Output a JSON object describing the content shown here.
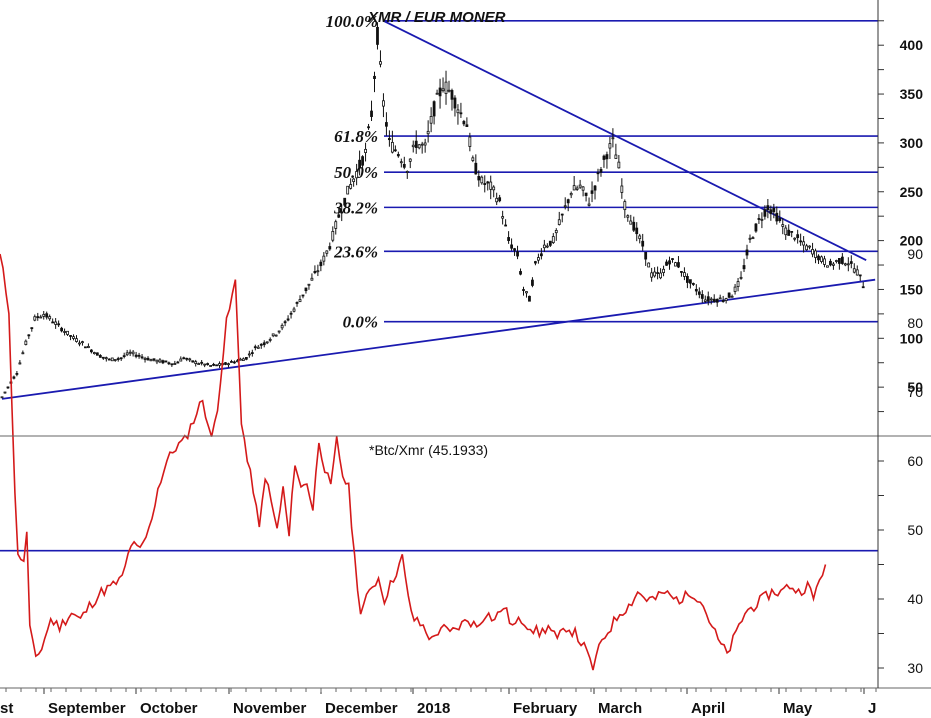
{
  "chart_data": [
    {
      "type": "candlestick",
      "title": "XMR / EUR MONER",
      "ylim": [
        0,
        440
      ],
      "yticks": [
        50,
        100,
        150,
        200,
        250,
        300,
        350,
        400
      ],
      "grid": false,
      "months": [
        "st",
        "September",
        "October",
        "November",
        "December",
        "2018",
        "February",
        "March",
        "April",
        "May",
        "J"
      ],
      "fib_levels": [
        {
          "label": "100.0%",
          "value": 425
        },
        {
          "label": "61.8%",
          "value": 307
        },
        {
          "label": "50.0%",
          "value": 270
        },
        {
          "label": "38.2%",
          "value": 234
        },
        {
          "label": "23.6%",
          "value": 189
        },
        {
          "label": "0.0%",
          "value": 117
        }
      ],
      "trendlines": [
        {
          "from": {
            "day": 0,
            "price": 38
          },
          "to": {
            "day": 293,
            "price": 160
          }
        },
        {
          "from": {
            "day": 128,
            "price": 425
          },
          "to": {
            "day": 290,
            "price": 180
          }
        }
      ],
      "close_points": [
        [
          0,
          40
        ],
        [
          5,
          65
        ],
        [
          8,
          95
        ],
        [
          11,
          120
        ],
        [
          14,
          125
        ],
        [
          17,
          118
        ],
        [
          20,
          110
        ],
        [
          24,
          100
        ],
        [
          27,
          95
        ],
        [
          30,
          88
        ],
        [
          33,
          82
        ],
        [
          36,
          78
        ],
        [
          40,
          80
        ],
        [
          43,
          85
        ],
        [
          46,
          82
        ],
        [
          50,
          78
        ],
        [
          54,
          76
        ],
        [
          58,
          74
        ],
        [
          61,
          80
        ],
        [
          64,
          76
        ],
        [
          67,
          74
        ],
        [
          70,
          72
        ],
        [
          74,
          73
        ],
        [
          78,
          76
        ],
        [
          82,
          80
        ],
        [
          85,
          90
        ],
        [
          88,
          95
        ],
        [
          92,
          105
        ],
        [
          95,
          115
        ],
        [
          98,
          130
        ],
        [
          101,
          145
        ],
        [
          104,
          160
        ],
        [
          107,
          175
        ],
        [
          110,
          195
        ],
        [
          113,
          225
        ],
        [
          116,
          250
        ],
        [
          119,
          270
        ],
        [
          122,
          290
        ],
        [
          124,
          330
        ],
        [
          126,
          410
        ],
        [
          128,
          340
        ],
        [
          130,
          300
        ],
        [
          133,
          290
        ],
        [
          136,
          275
        ],
        [
          139,
          300
        ],
        [
          142,
          295
        ],
        [
          145,
          335
        ],
        [
          148,
          360
        ],
        [
          151,
          350
        ],
        [
          154,
          330
        ],
        [
          156,
          320
        ],
        [
          158,
          280
        ],
        [
          161,
          260
        ],
        [
          164,
          255
        ],
        [
          167,
          240
        ],
        [
          170,
          200
        ],
        [
          173,
          185
        ],
        [
          175,
          150
        ],
        [
          177,
          140
        ],
        [
          179,
          175
        ],
        [
          182,
          195
        ],
        [
          185,
          200
        ],
        [
          188,
          225
        ],
        [
          191,
          250
        ],
        [
          194,
          255
        ],
        [
          197,
          240
        ],
        [
          200,
          265
        ],
        [
          203,
          290
        ],
        [
          205,
          300
        ],
        [
          207,
          275
        ],
        [
          209,
          235
        ],
        [
          212,
          215
        ],
        [
          215,
          195
        ],
        [
          218,
          165
        ],
        [
          221,
          165
        ],
        [
          224,
          180
        ],
        [
          227,
          175
        ],
        [
          230,
          160
        ],
        [
          233,
          150
        ],
        [
          236,
          140
        ],
        [
          239,
          140
        ],
        [
          242,
          140
        ],
        [
          245,
          145
        ],
        [
          248,
          160
        ],
        [
          251,
          200
        ],
        [
          254,
          220
        ],
        [
          257,
          235
        ],
        [
          260,
          225
        ],
        [
          263,
          210
        ],
        [
          266,
          205
        ],
        [
          269,
          195
        ],
        [
          272,
          190
        ],
        [
          275,
          180
        ],
        [
          278,
          175
        ],
        [
          281,
          180
        ],
        [
          284,
          178
        ],
        [
          287,
          168
        ],
        [
          289,
          155
        ]
      ]
    },
    {
      "type": "line",
      "title": "*Btc/Xmr (45.1933)",
      "ylim": [
        22,
        95
      ],
      "yticks": [
        30,
        40,
        50,
        60,
        70,
        80,
        90
      ],
      "grid": false,
      "hline": 47,
      "series_color": "#d41a1a",
      "hline_color": "#1a1ab0",
      "points": [
        [
          0,
          90
        ],
        [
          3,
          82
        ],
        [
          5,
          55
        ],
        [
          6,
          47
        ],
        [
          8,
          45
        ],
        [
          9,
          50
        ],
        [
          10,
          36
        ],
        [
          12,
          31
        ],
        [
          14,
          33
        ],
        [
          17,
          37
        ],
        [
          20,
          36
        ],
        [
          24,
          38
        ],
        [
          27,
          37
        ],
        [
          30,
          39
        ],
        [
          34,
          41
        ],
        [
          38,
          42
        ],
        [
          41,
          43
        ],
        [
          44,
          48
        ],
        [
          47,
          47
        ],
        [
          50,
          50
        ],
        [
          53,
          56
        ],
        [
          56,
          60
        ],
        [
          59,
          62
        ],
        [
          62,
          63
        ],
        [
          65,
          66
        ],
        [
          68,
          69
        ],
        [
          71,
          63
        ],
        [
          73,
          68
        ],
        [
          76,
          80
        ],
        [
          79,
          86
        ],
        [
          81,
          66
        ],
        [
          83,
          60
        ],
        [
          85,
          56
        ],
        [
          87,
          50
        ],
        [
          89,
          58
        ],
        [
          91,
          54
        ],
        [
          93,
          50
        ],
        [
          95,
          56
        ],
        [
          97,
          49
        ],
        [
          99,
          60
        ],
        [
          101,
          56
        ],
        [
          103,
          57
        ],
        [
          105,
          53
        ],
        [
          107,
          63
        ],
        [
          109,
          59
        ],
        [
          111,
          56
        ],
        [
          113,
          63
        ],
        [
          115,
          58
        ],
        [
          117,
          56
        ],
        [
          119,
          46
        ],
        [
          121,
          38
        ],
        [
          123,
          40
        ],
        [
          125,
          42
        ],
        [
          127,
          43
        ],
        [
          129,
          40
        ],
        [
          131,
          42
        ],
        [
          133,
          44
        ],
        [
          135,
          46
        ],
        [
          137,
          40
        ],
        [
          139,
          37
        ],
        [
          142,
          36
        ],
        [
          145,
          34
        ],
        [
          148,
          36
        ],
        [
          151,
          35
        ],
        [
          154,
          36
        ],
        [
          157,
          37
        ],
        [
          160,
          36
        ],
        [
          163,
          38
        ],
        [
          166,
          37
        ],
        [
          169,
          39
        ],
        [
          172,
          36
        ],
        [
          175,
          37
        ],
        [
          178,
          36
        ],
        [
          181,
          35
        ],
        [
          184,
          36
        ],
        [
          187,
          34
        ],
        [
          190,
          36
        ],
        [
          193,
          35
        ],
        [
          196,
          33
        ],
        [
          199,
          30
        ],
        [
          202,
          34
        ],
        [
          205,
          36
        ],
        [
          208,
          38
        ],
        [
          211,
          39
        ],
        [
          214,
          41
        ],
        [
          217,
          40
        ],
        [
          220,
          40
        ],
        [
          223,
          41
        ],
        [
          226,
          40
        ],
        [
          229,
          40
        ],
        [
          232,
          41
        ],
        [
          235,
          40
        ],
        [
          238,
          37
        ],
        [
          241,
          34
        ],
        [
          244,
          32
        ],
        [
          247,
          35
        ],
        [
          250,
          38
        ],
        [
          253,
          39
        ],
        [
          256,
          40
        ],
        [
          259,
          41
        ],
        [
          262,
          41
        ],
        [
          265,
          42
        ],
        [
          268,
          41
        ],
        [
          271,
          42
        ],
        [
          273,
          40
        ],
        [
          275,
          43
        ],
        [
          277,
          45
        ]
      ]
    }
  ]
}
